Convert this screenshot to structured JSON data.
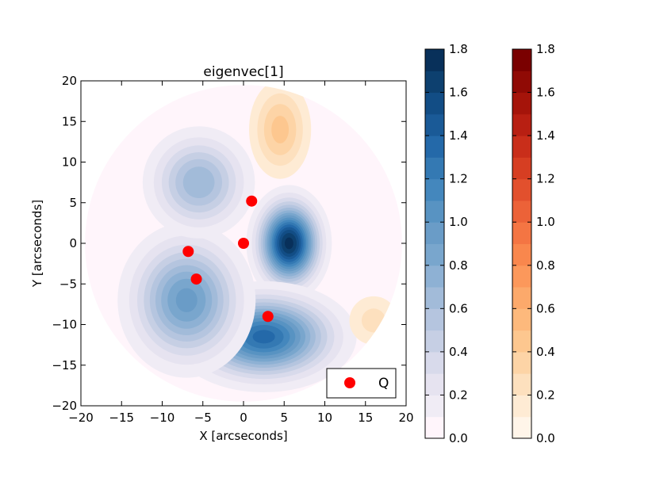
{
  "chart_data": {
    "type": "contour",
    "title": "eigenvec[1]",
    "xlabel": "X [arcseconds]",
    "ylabel": "Y [arcseconds]",
    "xlim": [
      -20,
      20
    ],
    "ylim": [
      -20,
      20
    ],
    "xticks": [
      -20,
      -15,
      -10,
      -5,
      0,
      5,
      10,
      15,
      20
    ],
    "yticks": [
      -20,
      -15,
      -10,
      -5,
      0,
      5,
      10,
      15,
      20
    ],
    "xtick_labels": [
      "−20",
      "−15",
      "−10",
      "−5",
      "0",
      "5",
      "10",
      "15",
      "20"
    ],
    "ytick_labels": [
      "−20",
      "−15",
      "−10",
      "−5",
      "0",
      "5",
      "10",
      "15",
      "20"
    ],
    "field_radius": 19.5,
    "features": [
      {
        "name": "blue-peak-center",
        "x": 5.6,
        "y": 0.0,
        "value": 1.75,
        "sx": 2.2,
        "sy": 3.0
      },
      {
        "name": "blue-lobe-south",
        "x": 2.5,
        "y": -11.5,
        "value": 1.35,
        "sx": 5.0,
        "sy": 3.0
      },
      {
        "name": "blue-lobe-southwest",
        "x": -7.0,
        "y": -7.0,
        "value": 0.95,
        "sx": 4.0,
        "sy": 4.5
      },
      {
        "name": "blue-lobe-northwest",
        "x": -5.5,
        "y": 7.5,
        "value": 0.7,
        "sx": 3.5,
        "sy": 3.5
      },
      {
        "name": "orange-lobe-north",
        "x": 4.5,
        "y": 14.0,
        "value": 0.45,
        "sx": 2.2,
        "sy": 3.5
      },
      {
        "name": "orange-lobe-east",
        "x": 16.0,
        "y": -9.5,
        "value": 0.25,
        "sx": 2.2,
        "sy": 2.2
      }
    ],
    "series": [
      {
        "name": "Q",
        "type": "scatter",
        "color": "#ff0000",
        "points": [
          {
            "x": 1.0,
            "y": 5.2
          },
          {
            "x": 0.0,
            "y": 0.0
          },
          {
            "x": -6.8,
            "y": -1.0
          },
          {
            "x": -5.8,
            "y": -4.4
          },
          {
            "x": 3.0,
            "y": -9.0
          }
        ]
      }
    ],
    "legend": {
      "label": "Q",
      "position": "bottom-right"
    },
    "colorbars": [
      {
        "name": "blue",
        "range": [
          0.0,
          1.8
        ],
        "levels": 18,
        "ticks": [
          0.0,
          0.2,
          0.4,
          0.6,
          0.8,
          1.0,
          1.2,
          1.4,
          1.6,
          1.8
        ],
        "tick_labels": [
          "0.0",
          "0.2",
          "0.4",
          "0.6",
          "0.8",
          "1.0",
          "1.2",
          "1.4",
          "1.6",
          "1.8"
        ],
        "colors": [
          "#fff5fb",
          "#f0ecf5",
          "#e6e3f0",
          "#d8daeb",
          "#c6cfe4",
          "#b5c5df",
          "#a2bbd9",
          "#8eb1d4",
          "#79a6cd",
          "#6a9cc7",
          "#5893c2",
          "#4487bd",
          "#3479b3",
          "#2469a9",
          "#1a5a97",
          "#124d85",
          "#0d406f",
          "#08305a"
        ]
      },
      {
        "name": "red",
        "range": [
          0.0,
          1.8
        ],
        "levels": 18,
        "ticks": [
          0.0,
          0.2,
          0.4,
          0.6,
          0.8,
          1.0,
          1.2,
          1.4,
          1.6,
          1.8
        ],
        "tick_labels": [
          "0.0",
          "0.2",
          "0.4",
          "0.6",
          "0.8",
          "1.0",
          "1.2",
          "1.4",
          "1.6",
          "1.8"
        ],
        "colors": [
          "#fff5e9",
          "#feebd4",
          "#fde0be",
          "#fdd4a6",
          "#fdc78f",
          "#fdb97c",
          "#fca96b",
          "#fc985b",
          "#f9874d",
          "#f47543",
          "#ec6238",
          "#e2502d",
          "#d63e22",
          "#c92e1a",
          "#b81f12",
          "#a5140a",
          "#900a05",
          "#7a0000"
        ]
      }
    ]
  }
}
